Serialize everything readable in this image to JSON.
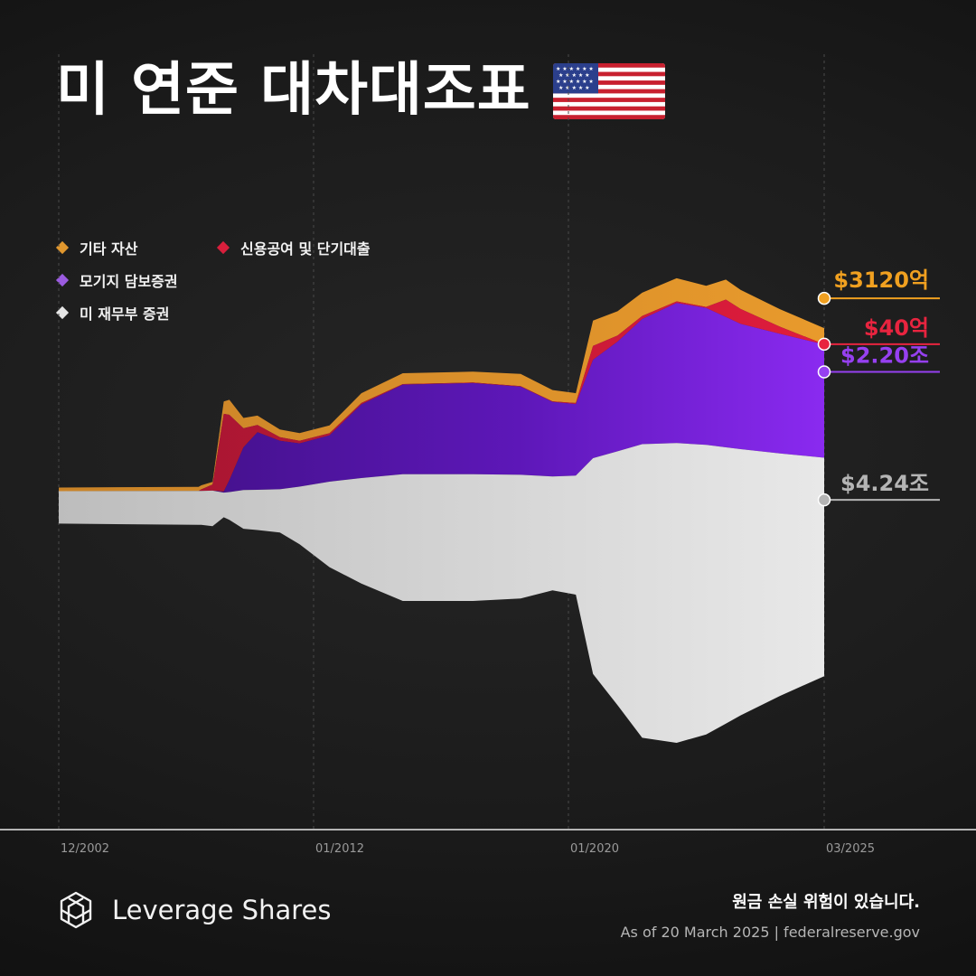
{
  "title": "미 연준 대차대조표",
  "legend": [
    {
      "label": "기타 자산",
      "color": "#e0972e"
    },
    {
      "label": "신용공여 및 단기대출",
      "color": "#d81f3c"
    },
    {
      "label": "모기지 담보증권",
      "color": "#9b5be0"
    },
    {
      "label": "미 재무부 증권",
      "color": "#e6e6e6"
    }
  ],
  "chart_data": {
    "type": "area",
    "stacked": true,
    "x_ticks": [
      "12/2002",
      "01/2012",
      "01/2020",
      "03/2025"
    ],
    "x_range": [
      2002.92,
      2025.2
    ],
    "unit": "USD trillion",
    "series": [
      {
        "name": "미 재무부 증권",
        "color": "#e6e6e6",
        "points": [
          [
            2002.92,
            0.63
          ],
          [
            2008.0,
            0.66
          ],
          [
            2008.4,
            0.69
          ],
          [
            2008.8,
            0.48
          ],
          [
            2009.0,
            0.54
          ],
          [
            2009.5,
            0.75
          ],
          [
            2010.0,
            0.78
          ],
          [
            2010.8,
            0.84
          ],
          [
            2011.5,
            1.12
          ],
          [
            2012.5,
            1.66
          ],
          [
            2013.5,
            2.05
          ],
          [
            2014.8,
            2.46
          ],
          [
            2017.0,
            2.46
          ],
          [
            2018.5,
            2.4
          ],
          [
            2019.5,
            2.21
          ],
          [
            2020.15,
            2.31
          ],
          [
            2020.5,
            4.19
          ],
          [
            2021.0,
            4.93
          ],
          [
            2021.5,
            5.7
          ],
          [
            2022.2,
            5.82
          ],
          [
            2022.8,
            5.62
          ],
          [
            2023.5,
            5.17
          ],
          [
            2024.3,
            4.71
          ],
          [
            2025.2,
            4.24
          ]
        ]
      },
      {
        "name": "모기지 담보증권",
        "color": "#9b5be0",
        "points": [
          [
            2002.92,
            0.0
          ],
          [
            2008.4,
            0.0
          ],
          [
            2008.8,
            0.02
          ],
          [
            2009.0,
            0.23
          ],
          [
            2009.5,
            0.83
          ],
          [
            2010.0,
            1.12
          ],
          [
            2010.8,
            0.94
          ],
          [
            2011.5,
            0.84
          ],
          [
            2012.5,
            0.9
          ],
          [
            2013.5,
            1.43
          ],
          [
            2014.8,
            1.74
          ],
          [
            2017.0,
            1.77
          ],
          [
            2018.5,
            1.71
          ],
          [
            2019.5,
            1.45
          ],
          [
            2020.15,
            1.39
          ],
          [
            2020.5,
            1.91
          ],
          [
            2021.0,
            2.13
          ],
          [
            2021.5,
            2.43
          ],
          [
            2022.2,
            2.72
          ],
          [
            2022.8,
            2.66
          ],
          [
            2023.5,
            2.43
          ],
          [
            2024.3,
            2.32
          ],
          [
            2025.2,
            2.2
          ]
        ]
      },
      {
        "name": "신용공여 및 단기대출",
        "color": "#d81f3c",
        "points": [
          [
            2002.92,
            0.0
          ],
          [
            2007.9,
            0.0
          ],
          [
            2008.0,
            0.03
          ],
          [
            2008.4,
            0.12
          ],
          [
            2008.8,
            1.51
          ],
          [
            2009.0,
            1.27
          ],
          [
            2009.5,
            0.37
          ],
          [
            2010.0,
            0.14
          ],
          [
            2010.8,
            0.07
          ],
          [
            2011.5,
            0.05
          ],
          [
            2012.5,
            0.04
          ],
          [
            2014.8,
            0.01
          ],
          [
            2019.5,
            0.01
          ],
          [
            2020.15,
            0.02
          ],
          [
            2020.5,
            0.27
          ],
          [
            2021.0,
            0.12
          ],
          [
            2021.5,
            0.06
          ],
          [
            2022.2,
            0.03
          ],
          [
            2022.8,
            0.02
          ],
          [
            2023.2,
            0.34
          ],
          [
            2023.5,
            0.29
          ],
          [
            2024.3,
            0.14
          ],
          [
            2025.2,
            0.004
          ]
        ]
      },
      {
        "name": "기타 자산",
        "color": "#e0972e",
        "points": [
          [
            2002.92,
            0.07
          ],
          [
            2008.0,
            0.08
          ],
          [
            2008.4,
            0.05
          ],
          [
            2008.8,
            0.24
          ],
          [
            2009.0,
            0.29
          ],
          [
            2009.5,
            0.2
          ],
          [
            2010.0,
            0.18
          ],
          [
            2010.8,
            0.15
          ],
          [
            2011.5,
            0.15
          ],
          [
            2012.5,
            0.15
          ],
          [
            2013.5,
            0.19
          ],
          [
            2014.8,
            0.21
          ],
          [
            2017.0,
            0.21
          ],
          [
            2018.5,
            0.24
          ],
          [
            2019.5,
            0.22
          ],
          [
            2020.15,
            0.19
          ],
          [
            2020.5,
            0.49
          ],
          [
            2021.0,
            0.47
          ],
          [
            2021.5,
            0.45
          ],
          [
            2022.2,
            0.45
          ],
          [
            2022.8,
            0.41
          ],
          [
            2023.5,
            0.37
          ],
          [
            2024.3,
            0.34
          ],
          [
            2025.2,
            0.312
          ]
        ]
      }
    ],
    "end_labels": [
      {
        "text": "$3120억",
        "color": "#f0a020"
      },
      {
        "text": "$40억",
        "color": "#e8243f"
      },
      {
        "text": "$2.20조",
        "color": "#9640f0"
      },
      {
        "text": "$4.24조",
        "color": "#b4b4b4"
      }
    ]
  },
  "footer": {
    "brand": "Leverage Shares",
    "risk": "원금 손실 위험이 있습니다.",
    "source": "As of 20 March 2025 | federalreserve.gov"
  }
}
